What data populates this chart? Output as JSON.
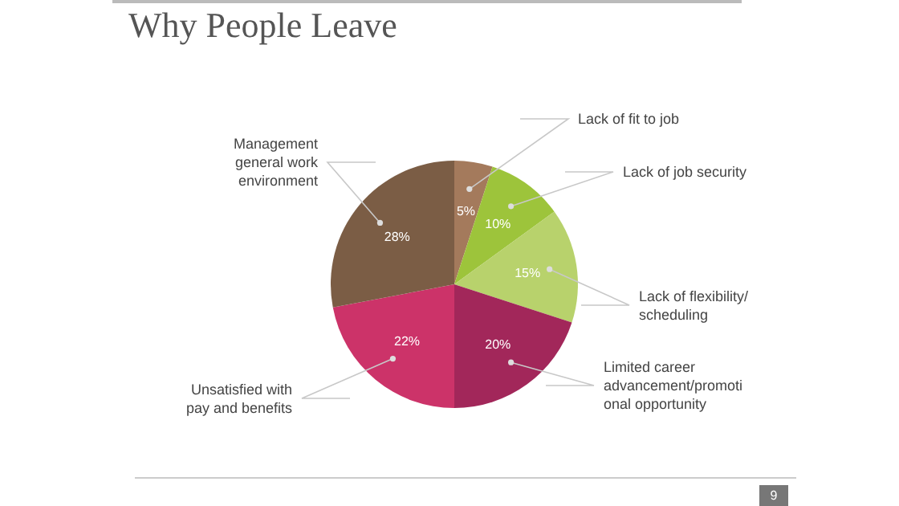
{
  "chart_data": {
    "type": "pie",
    "title": "Why People Leave",
    "categories": [
      "Lack of fit to job",
      "Lack of job security",
      "Lack of flexibility/ scheduling",
      "Limited career advancement/promotional opportunity",
      "Unsatisfied with pay and benefits",
      "Management general work environment"
    ],
    "values": [
      5,
      10,
      15,
      20,
      22,
      28
    ],
    "value_labels": [
      "5%",
      "10%",
      "15%",
      "20%",
      "22%",
      "28%"
    ],
    "colors": [
      "#a47a5c",
      "#9dc43b",
      "#b8d26c",
      "#a2275a",
      "#cc3369",
      "#7b5d45"
    ],
    "annotations": [
      "9"
    ]
  }
}
